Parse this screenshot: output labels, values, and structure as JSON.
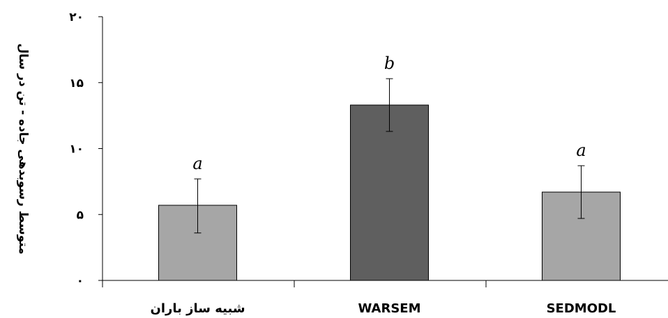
{
  "chart_data": {
    "type": "bar",
    "title": "",
    "xlabel": "",
    "ylabel": "متوسط رسوبدهی جاده - تن در سال",
    "ylim": [
      0,
      20
    ],
    "yticks": [
      0,
      5,
      10,
      15,
      20
    ],
    "ytick_labels": [
      "۰",
      "۵",
      "۱۰",
      "۱۵",
      "۲۰"
    ],
    "categories": [
      "شبیه ساز باران",
      "WARSEM",
      "SEDMODL"
    ],
    "values": [
      5.7,
      13.3,
      6.7
    ],
    "error_upper": [
      7.7,
      15.3,
      8.7
    ],
    "error_lower": [
      3.6,
      11.3,
      4.7
    ],
    "significance": [
      "a",
      "b",
      "a"
    ],
    "bar_colors": [
      "#a6a6a6",
      "#5f5f5f",
      "#a6a6a6"
    ],
    "grid": false,
    "legend": "none"
  }
}
